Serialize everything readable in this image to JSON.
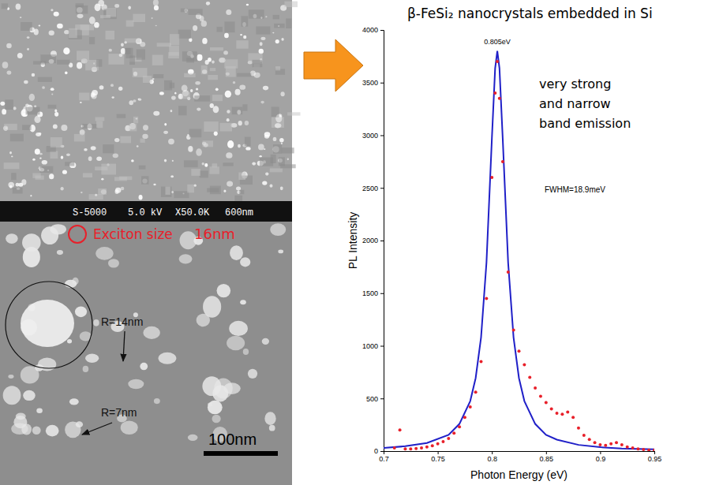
{
  "chart_data": {
    "type": "scatter",
    "title": "β-FeSi₂ nanocrystals embedded in Si",
    "x_label": "Photon Energy (eV)",
    "y_label": "PL Intensity",
    "annotations": [
      "0.805eV",
      "very strong",
      "and narrow",
      "band emission",
      "FWHM=18.9meV"
    ],
    "series": [
      {
        "type": "scatter",
        "marker": "circle",
        "color": "#e8202a",
        "x": [
          0.71,
          0.715,
          0.72,
          0.725,
          0.73,
          0.735,
          0.74,
          0.745,
          0.75,
          0.755,
          0.76,
          0.765,
          0.77,
          0.775,
          0.78,
          0.785,
          0.79,
          0.795,
          0.8,
          0.803,
          0.805,
          0.807,
          0.81,
          0.815,
          0.82,
          0.825,
          0.83,
          0.835,
          0.84,
          0.845,
          0.85,
          0.855,
          0.86,
          0.865,
          0.87,
          0.875,
          0.88,
          0.885,
          0.89,
          0.895,
          0.9,
          0.905,
          0.91,
          0.915,
          0.92,
          0.925,
          0.93,
          0.935,
          0.94,
          0.945,
          0.95
        ],
        "values": [
          30,
          200,
          20,
          20,
          25,
          30,
          40,
          50,
          70,
          90,
          120,
          170,
          230,
          320,
          420,
          560,
          850,
          1450,
          2600,
          3400,
          3700,
          3350,
          2750,
          1700,
          1150,
          950,
          820,
          700,
          600,
          520,
          460,
          400,
          360,
          350,
          370,
          320,
          220,
          150,
          110,
          80,
          60,
          55,
          70,
          80,
          60,
          40,
          30,
          20,
          15,
          10,
          10
        ]
      },
      {
        "type": "line",
        "line_style": "solid",
        "color": "#2020c8",
        "x": [
          0.7,
          0.72,
          0.74,
          0.76,
          0.77,
          0.78,
          0.785,
          0.79,
          0.795,
          0.8,
          0.803,
          0.805,
          0.807,
          0.81,
          0.815,
          0.82,
          0.825,
          0.83,
          0.84,
          0.85,
          0.86,
          0.88,
          0.9,
          0.92,
          0.95
        ],
        "values": [
          30,
          46,
          77,
          154,
          258,
          475,
          693,
          1080,
          1790,
          2970,
          3636,
          3800,
          3636,
          2970,
          1790,
          1080,
          693,
          475,
          258,
          154,
          109,
          59,
          37,
          25,
          16
        ]
      }
    ],
    "xlim": [
      0.7,
      0.95
    ],
    "xticks": [
      0.7,
      0.75,
      0.8,
      0.85,
      0.9,
      0.95
    ],
    "ylim": [
      0,
      4000
    ],
    "yticks": [
      0,
      500,
      1000,
      1500,
      2000,
      2500,
      3000,
      3500,
      4000
    ],
    "grid": false
  },
  "micrographs": {
    "info_bar": [
      "S-5000",
      "5.0 kV",
      "X50.0K",
      "600nm"
    ],
    "labels": [
      "Exciton size",
      "16nm",
      "R=14nm",
      "R=7nm"
    ],
    "scale_bar": "100nm"
  }
}
